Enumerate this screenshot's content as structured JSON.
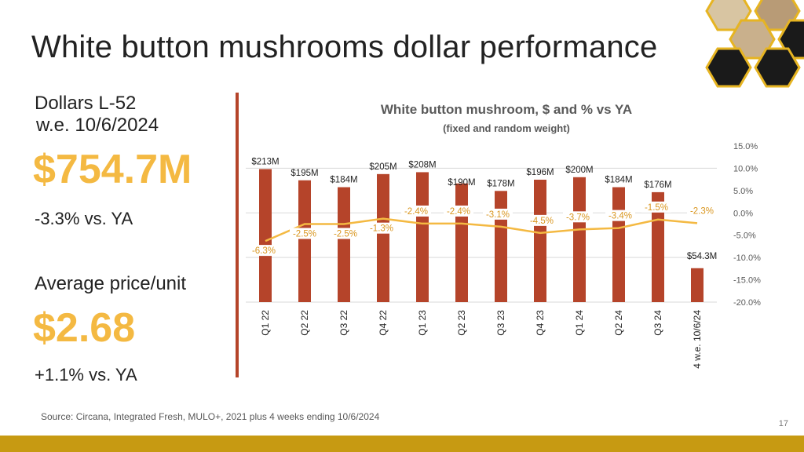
{
  "page": {
    "title": "White button mushrooms dollar performance",
    "source": "Source: Circana, Integrated Fresh, MULO+, 2021 plus 4 weeks ending 10/6/2024",
    "page_number": "17"
  },
  "kpis": {
    "dollars_label": "Dollars L-52",
    "dollars_period": "w.e. 10/6/2024",
    "dollars_value": "$754.7M",
    "dollars_change": "-3.3% vs. YA",
    "price_label": "Average price/unit",
    "price_value": "$2.68",
    "price_change": "+1.1% vs. YA"
  },
  "colors": {
    "bar": "#b5442a",
    "line": "#f4b942",
    "kpi_value": "#f4b942",
    "divider": "#b5442a",
    "footer": "#c79a12"
  },
  "chart_data": {
    "type": "bar",
    "title": "White button mushroom, $ and % vs YA",
    "subtitle": "(fixed and random weight)",
    "categories": [
      "Q1 22",
      "Q2 22",
      "Q3 22",
      "Q4 22",
      "Q1 23",
      "Q2 23",
      "Q3 23",
      "Q4 23",
      "Q1 24",
      "Q2 24",
      "Q3 24",
      "4 w.e. 10/6/24"
    ],
    "bar_labels": [
      "$213M",
      "$195M",
      "$184M",
      "$205M",
      "$208M",
      "$190M",
      "$178M",
      "$196M",
      "$200M",
      "$184M",
      "$176M",
      "$54.3M"
    ],
    "series": [
      {
        "name": "",
        "kind": "bar",
        "axis": "left",
        "values": [
          213,
          195,
          184,
          205,
          208,
          190,
          178,
          196,
          200,
          184,
          176,
          54.3
        ]
      },
      {
        "name": "",
        "kind": "line",
        "axis": "right",
        "values": [
          -6.3,
          -2.5,
          -2.5,
          -1.3,
          -2.4,
          -2.4,
          -3.1,
          -4.5,
          -3.7,
          -3.4,
          -1.5,
          -2.3
        ],
        "labels": [
          "-6.3%",
          "-2.5%",
          "-2.5%",
          "-1.3%",
          "-2.4%",
          "-2.4%",
          "-3.1%",
          "-4.5%",
          "-3.7%",
          "-3.4%",
          "-1.5%",
          "-2.3%"
        ]
      }
    ],
    "y_left_range": [
      0,
      250
    ],
    "y_right_range": [
      -20,
      15
    ],
    "y_right_ticks": [
      "15.0%",
      "10.0%",
      "5.0%",
      "0.0%",
      "-5.0%",
      "-10.0%",
      "-15.0%",
      "-20.0%"
    ],
    "grid": true
  }
}
